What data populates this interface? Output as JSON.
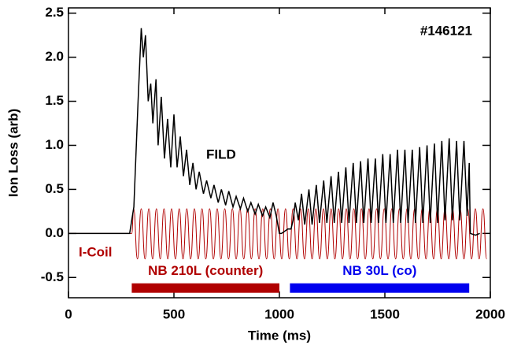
{
  "chart_data": {
    "type": "line",
    "xlabel": "Time (ms)",
    "ylabel": "Ion Loss (arb)",
    "xlim": [
      0,
      2000
    ],
    "ylim": [
      -0.73,
      2.56
    ],
    "xticks": [
      0,
      500,
      1000,
      1500,
      2000
    ],
    "yticks": [
      {
        "value": -0.5,
        "label": "-0.5"
      },
      {
        "value": 0,
        "label": "0.0"
      },
      {
        "value": 0.5,
        "label": "0.5"
      },
      {
        "value": 1,
        "label": "1.0"
      },
      {
        "value": 1.5,
        "label": "1.5"
      },
      {
        "value": 2,
        "label": "2.0"
      },
      {
        "value": 2.5,
        "label": "2.5"
      }
    ],
    "annotations": {
      "shot": "#146121"
    },
    "series": [
      {
        "name": "FILD",
        "color": "#000000",
        "x": [
          0,
          290,
          310,
          330,
          345,
          355,
          365,
          378,
          390,
          400,
          415,
          425,
          440,
          455,
          470,
          485,
          500,
          515,
          530,
          545,
          560,
          575,
          590,
          605,
          620,
          640,
          655,
          675,
          690,
          710,
          725,
          745,
          760,
          780,
          795,
          815,
          830,
          850,
          865,
          885,
          900,
          920,
          935,
          955,
          970,
          985,
          1000,
          1010,
          1040,
          1055,
          1065,
          1075,
          1090,
          1105,
          1120,
          1140,
          1155,
          1175,
          1190,
          1210,
          1225,
          1245,
          1260,
          1280,
          1295,
          1315,
          1330,
          1350,
          1365,
          1385,
          1400,
          1420,
          1435,
          1455,
          1470,
          1490,
          1505,
          1525,
          1540,
          1560,
          1575,
          1595,
          1610,
          1630,
          1645,
          1665,
          1680,
          1700,
          1715,
          1735,
          1750,
          1770,
          1785,
          1805,
          1820,
          1840,
          1855,
          1875,
          1890,
          1900,
          1905,
          1930,
          1950
        ],
        "values": [
          0,
          0,
          0.3,
          1.5,
          2.33,
          2.0,
          2.25,
          1.5,
          1.7,
          1.25,
          1.75,
          1.0,
          1.55,
          0.85,
          1.3,
          0.75,
          1.35,
          0.75,
          1.1,
          0.65,
          0.95,
          0.55,
          0.8,
          0.5,
          0.7,
          0.45,
          0.6,
          0.4,
          0.55,
          0.35,
          0.5,
          0.32,
          0.48,
          0.3,
          0.42,
          0.28,
          0.4,
          0.25,
          0.35,
          0.22,
          0.33,
          0.2,
          0.3,
          0.18,
          0.35,
          0.2,
          0,
          0,
          0.05,
          0.05,
          0.15,
          0.35,
          0.15,
          0.45,
          0.1,
          0.5,
          0.1,
          0.55,
          0.12,
          0.6,
          0.12,
          0.65,
          0.12,
          0.7,
          0.12,
          0.75,
          0.12,
          0.8,
          0.12,
          0.82,
          0.12,
          0.85,
          0.12,
          0.85,
          0.12,
          0.9,
          0.12,
          0.9,
          0.12,
          0.95,
          0.12,
          0.95,
          0.12,
          0.95,
          0.12,
          0.98,
          0.12,
          1.0,
          0.12,
          1.02,
          0.12,
          1.05,
          0.15,
          1.08,
          0.15,
          1.05,
          0.15,
          1.05,
          0.2,
          0.8,
          0,
          -0.02,
          0
        ]
      },
      {
        "name": "I-Coil",
        "color": "#b00000",
        "x": [
          0,
          300,
          309,
          327,
          345,
          363,
          381,
          399,
          417,
          435,
          453,
          471,
          489,
          507,
          525,
          543,
          561,
          579,
          597,
          615,
          633,
          651,
          669,
          687,
          705,
          723,
          741,
          759,
          777,
          795,
          813,
          831,
          849,
          867,
          885,
          903,
          921,
          939,
          957,
          975,
          993,
          1011,
          1029,
          1047,
          1065,
          1083,
          1101,
          1119,
          1137,
          1155,
          1173,
          1191,
          1209,
          1227,
          1245,
          1263,
          1281,
          1299,
          1317,
          1335,
          1353,
          1371,
          1389,
          1407,
          1425,
          1443,
          1461,
          1479,
          1497,
          1515,
          1533,
          1551,
          1569,
          1587,
          1605,
          1623,
          1641,
          1659,
          1677,
          1695,
          1713,
          1731,
          1749,
          1767,
          1785,
          1803,
          1821,
          1839,
          1857,
          1875,
          1893,
          1911,
          1929,
          1947,
          1965,
          1983
        ],
        "values": [
          0,
          0,
          0.28,
          -0.29,
          0.28,
          -0.29,
          0.28,
          -0.29,
          0.28,
          -0.29,
          0.28,
          -0.29,
          0.28,
          -0.29,
          0.28,
          -0.29,
          0.28,
          -0.29,
          0.28,
          -0.29,
          0.28,
          -0.29,
          0.28,
          -0.29,
          0.28,
          -0.29,
          0.28,
          -0.29,
          0.28,
          -0.29,
          0.28,
          -0.29,
          0.28,
          -0.29,
          0.28,
          -0.29,
          0.28,
          -0.29,
          0.28,
          -0.29,
          0.28,
          -0.29,
          0.28,
          -0.29,
          0.28,
          -0.29,
          0.28,
          -0.29,
          0.28,
          -0.29,
          0.28,
          -0.29,
          0.28,
          -0.29,
          0.28,
          -0.29,
          0.28,
          -0.29,
          0.28,
          -0.29,
          0.28,
          -0.29,
          0.28,
          -0.29,
          0.28,
          -0.29,
          0.28,
          -0.29,
          0.28,
          -0.29,
          0.28,
          -0.29,
          0.28,
          -0.29,
          0.28,
          -0.29,
          0.28,
          -0.29,
          0.28,
          -0.29,
          0.28,
          -0.29,
          0.28,
          -0.29,
          0.28,
          -0.29,
          0.28,
          -0.29,
          0.28,
          -0.29,
          0.28,
          -0.29,
          0.28,
          -0.29,
          0.28,
          -0.29
        ]
      }
    ],
    "beams": [
      {
        "label": "NB 210L (counter)",
        "color": "#b00000",
        "start": 300,
        "end": 1000,
        "level": -0.62
      },
      {
        "label": "NB 30L (co)",
        "color": "#0000ee",
        "start": 1050,
        "end": 1900,
        "level": -0.62
      }
    ]
  }
}
